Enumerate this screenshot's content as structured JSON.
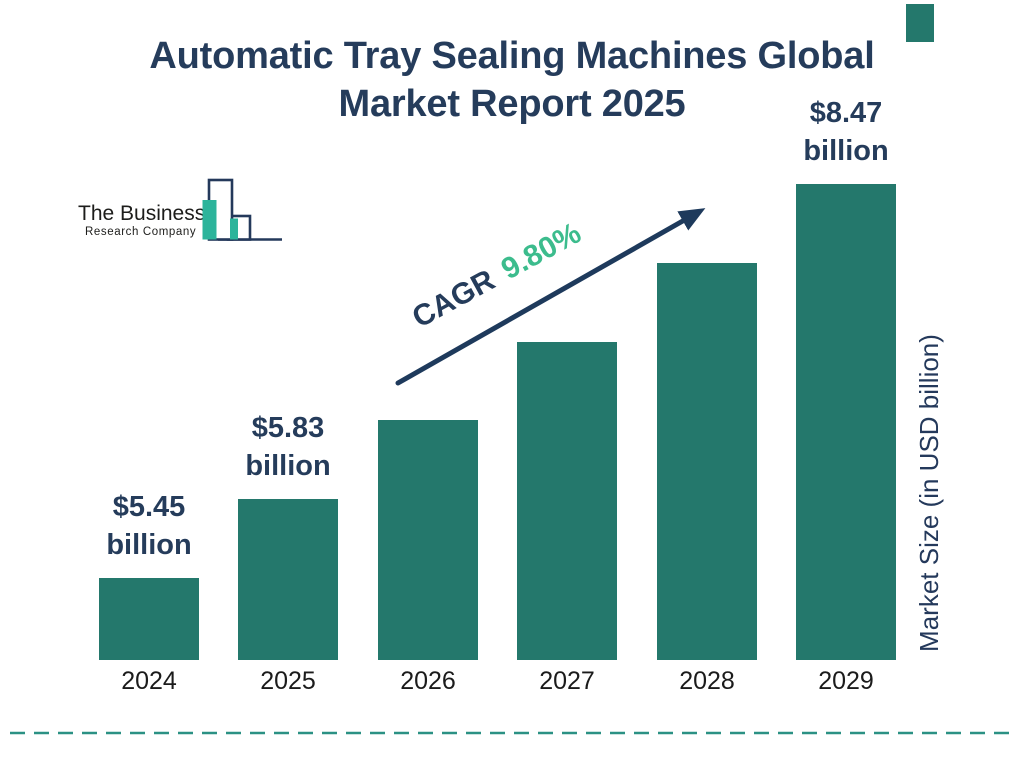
{
  "header": {
    "title_lines": [
      "Automatic Tray Sealing Machines Global",
      "Market Report 2025"
    ]
  },
  "logo": {
    "name": "The Business",
    "subname": "Research Company"
  },
  "chart_data": {
    "type": "bar",
    "title": "Automatic Tray Sealing Machines Global Market Report 2025",
    "categories": [
      "2024",
      "2025",
      "2026",
      "2027",
      "2028",
      "2029"
    ],
    "values": [
      5.45,
      5.83,
      6.4,
      7.03,
      7.72,
      8.47
    ],
    "unit": "USD billion",
    "value_labels": [
      {
        "amount": "$5.45",
        "unit": "billion"
      },
      {
        "amount": "$5.83",
        "unit": "billion"
      },
      null,
      null,
      null,
      {
        "amount": "$8.47",
        "unit": "billion"
      }
    ],
    "ylabel": "Market Size (in USD billion)",
    "xlabel": "",
    "cagr": {
      "label": "CAGR",
      "value": "9.80%"
    },
    "bar_color": "#24786C",
    "grid": false,
    "legend": false,
    "ylim_note": "bars drawn with even visual steps, no numeric axis shown"
  },
  "colors": {
    "navy_text": "#253C5B",
    "bar_teal": "#24786C",
    "cagr_green": "#3CBC8D",
    "arrow_navy": "#1E3A5C",
    "dashed_line_teal": "#2B9184",
    "logo_teal": "#2CB49B",
    "year_text": "#1B1B1B"
  }
}
